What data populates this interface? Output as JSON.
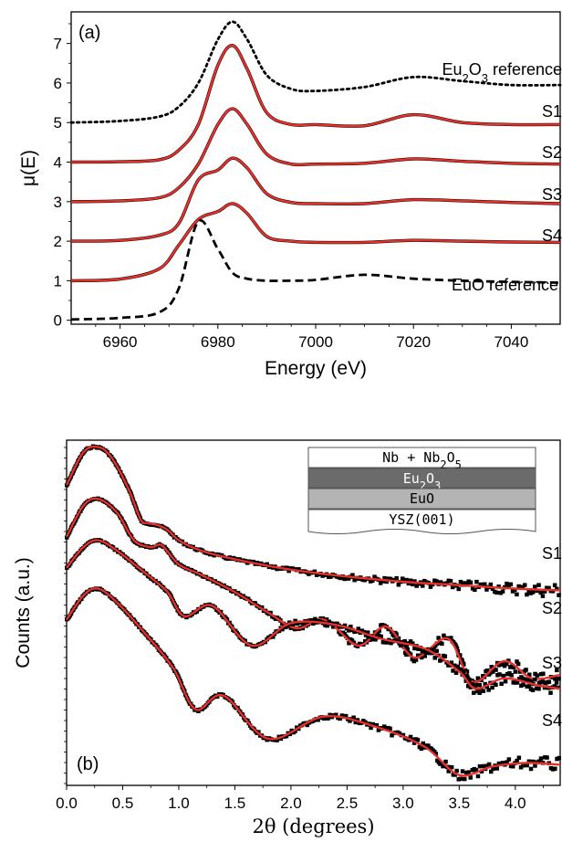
{
  "colors": {
    "fit": "#e8302a",
    "data": "#000000",
    "axis": "#000000",
    "inset_eu2o3": "#6b6b6b",
    "inset_euo": "#b4b4b4",
    "inset_top": "#ffffff",
    "inset_ysz": "#ffffff"
  },
  "chart_data": [
    {
      "id": "a",
      "type": "line",
      "panel_label": "(a)",
      "xlabel": "Energy (eV)",
      "ylabel": "μ(E)",
      "xlim": [
        6950,
        7050
      ],
      "ylim": [
        -0.1,
        7.8
      ],
      "xticks": [
        6960,
        6980,
        7000,
        7020,
        7040
      ],
      "yticks": [
        0,
        1,
        2,
        3,
        4,
        5,
        6,
        7
      ],
      "grid": false,
      "spectrum_x": [
        6950,
        6960,
        6968,
        6972,
        6976,
        6980,
        6983,
        6986,
        6990,
        6995,
        7000,
        7010,
        7020,
        7030,
        7040,
        7050
      ],
      "series": [
        {
          "name": "Eu2O3 reference",
          "label_html": "Eu<tspan baseline-shift=\"sub\" font-size=\"13\">2</tspan>O<tspan baseline-shift=\"sub\" font-size=\"13\">3</tspan> reference",
          "style": "dotted",
          "values": [
            5.0,
            5.04,
            5.15,
            5.4,
            6.0,
            7.1,
            7.55,
            7.1,
            6.2,
            5.85,
            5.8,
            5.9,
            6.15,
            6.05,
            5.95,
            5.95
          ]
        },
        {
          "name": "S1",
          "style": "solid",
          "values": [
            4.0,
            4.01,
            4.06,
            4.3,
            4.95,
            6.45,
            6.95,
            6.35,
            5.25,
            4.95,
            4.95,
            4.92,
            5.2,
            5.0,
            4.95,
            4.95
          ]
        },
        {
          "name": "S2",
          "style": "solid",
          "values": [
            3.0,
            3.02,
            3.1,
            3.35,
            3.95,
            4.95,
            5.35,
            4.95,
            4.2,
            3.95,
            3.95,
            3.97,
            4.08,
            4.02,
            3.97,
            3.95
          ]
        },
        {
          "name": "S3",
          "style": "solid",
          "values": [
            2.0,
            2.02,
            2.15,
            2.45,
            3.55,
            3.8,
            4.1,
            3.85,
            3.2,
            2.98,
            2.95,
            2.95,
            3.05,
            3.02,
            2.98,
            2.95
          ]
        },
        {
          "name": "S4",
          "style": "solid",
          "values": [
            1.0,
            1.04,
            1.3,
            1.9,
            2.55,
            2.75,
            2.95,
            2.7,
            2.12,
            2.0,
            1.97,
            1.97,
            2.02,
            2.0,
            1.98,
            1.97
          ]
        },
        {
          "name": "EuO reference",
          "style": "dashed",
          "values": [
            0.02,
            0.06,
            0.2,
            0.8,
            2.5,
            1.8,
            1.2,
            1.05,
            1.0,
            1.0,
            1.02,
            1.15,
            1.05,
            1.0,
            0.97,
            0.95
          ]
        }
      ]
    },
    {
      "id": "b",
      "type": "line",
      "panel_label": "(b)",
      "xlabel": "2θ (degrees)",
      "ylabel": "Counts (a.u.)",
      "xlim": [
        0.0,
        4.4
      ],
      "ylim": [
        0,
        10
      ],
      "xticks": [
        0.0,
        0.5,
        1.0,
        1.5,
        2.0,
        2.5,
        3.0,
        3.5,
        4.0
      ],
      "xtick_labels": [
        "0.0",
        "0.5",
        "1.0",
        "1.5",
        "2.0",
        "2.5",
        "3.0",
        "3.5",
        "4.0"
      ],
      "grid": false,
      "series": [
        {
          "name": "S1",
          "x": [
            0.0,
            0.15,
            0.28,
            0.4,
            0.55,
            0.66,
            0.72,
            0.8,
            0.9,
            1.0,
            1.2,
            1.5,
            2.0,
            2.5,
            3.0,
            3.5,
            4.0,
            4.4
          ],
          "values": [
            8.7,
            9.65,
            9.8,
            9.5,
            8.6,
            7.7,
            7.6,
            7.55,
            7.4,
            7.1,
            6.8,
            6.55,
            6.25,
            6.05,
            5.9,
            5.8,
            5.7,
            5.65
          ]
        },
        {
          "name": "S2",
          "x": [
            0.0,
            0.15,
            0.28,
            0.45,
            0.6,
            0.75,
            0.85,
            1.0,
            1.2,
            1.5,
            1.8,
            2.05,
            2.3,
            2.6,
            2.85,
            3.1,
            3.4,
            3.62,
            3.9,
            4.15,
            4.4
          ],
          "values": [
            7.2,
            8.1,
            8.3,
            7.9,
            7.1,
            6.9,
            6.95,
            6.4,
            6.1,
            5.6,
            5.0,
            4.55,
            4.8,
            4.05,
            4.6,
            3.7,
            4.25,
            3.0,
            3.6,
            3.1,
            3.2
          ]
        },
        {
          "name": "S3",
          "x": [
            0.0,
            0.15,
            0.28,
            0.45,
            0.7,
            0.9,
            1.05,
            1.3,
            1.65,
            2.0,
            2.4,
            2.8,
            3.2,
            3.5,
            3.65,
            3.9,
            4.2,
            4.4
          ],
          "values": [
            6.3,
            6.9,
            7.1,
            6.8,
            6.15,
            5.6,
            4.9,
            5.2,
            4.05,
            4.7,
            4.65,
            4.25,
            3.95,
            3.3,
            2.8,
            3.1,
            2.9,
            2.8
          ]
        },
        {
          "name": "S4",
          "x": [
            0.0,
            0.15,
            0.28,
            0.45,
            0.7,
            0.95,
            1.15,
            1.4,
            1.8,
            2.3,
            2.8,
            3.2,
            3.5,
            3.8,
            4.1,
            4.4
          ],
          "values": [
            4.8,
            5.5,
            5.7,
            5.3,
            4.4,
            3.4,
            2.2,
            2.6,
            1.35,
            2.0,
            1.65,
            1.1,
            0.3,
            0.55,
            0.65,
            0.6
          ]
        }
      ]
    }
  ],
  "inset": {
    "layers": [
      {
        "label_html": "Nb + Nb<tspan baseline-shift=\"sub\" font-size=\"12\">2</tspan>O<tspan baseline-shift=\"sub\" font-size=\"12\">5</tspan>",
        "fill_key": "inset_top"
      },
      {
        "label_html": "Eu<tspan baseline-shift=\"sub\" font-size=\"12\">2</tspan>O<tspan baseline-shift=\"sub\" font-size=\"12\">3</tspan>",
        "fill_key": "inset_eu2o3",
        "text_color": "#ffffff"
      },
      {
        "label_html": "EuO",
        "fill_key": "inset_euo"
      },
      {
        "label_html": "YSZ(001)",
        "fill_key": "inset_ysz"
      }
    ]
  }
}
